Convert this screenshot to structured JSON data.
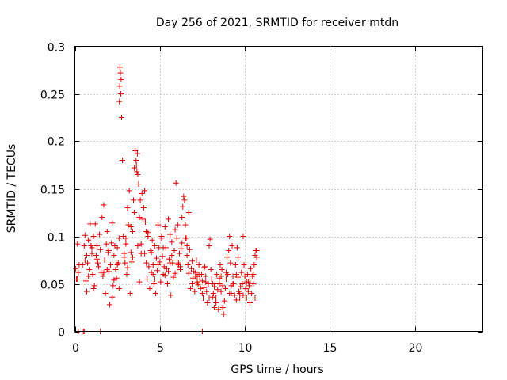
{
  "chart_data": {
    "type": "scatter",
    "title": "Day 256 of 2021, SRMTID for receiver mtdn",
    "xlabel": "GPS time / hours",
    "ylabel": "SRMTID / TECUs",
    "xlim": [
      0,
      24
    ],
    "ylim": [
      0,
      0.3
    ],
    "xticks": [
      0,
      5,
      10,
      15,
      20
    ],
    "yticks": [
      0,
      0.05,
      0.1,
      0.15,
      0.2,
      0.25,
      0.3
    ],
    "xtick_labels": [
      "0",
      "5",
      "10",
      "15",
      "20"
    ],
    "ytick_labels": [
      "0",
      "0.05",
      "0.1",
      "0.15",
      "0.2",
      "0.25",
      "0.3"
    ],
    "grid": true,
    "marker": "+",
    "color": "#e00000",
    "series": [
      {
        "name": "SRMTID",
        "x": [
          0.05,
          0.1,
          0.15,
          0.2,
          0.25,
          0.45,
          0.55,
          0.6,
          0.65,
          0.7,
          0.75,
          0.8,
          0.85,
          0.9,
          0.95,
          1.0,
          1.05,
          1.1,
          1.15,
          1.2,
          1.25,
          1.3,
          1.35,
          1.4,
          1.45,
          1.5,
          1.55,
          1.6,
          1.65,
          1.7,
          1.75,
          1.8,
          1.85,
          1.9,
          1.95,
          2.0,
          2.05,
          2.1,
          2.15,
          2.2,
          2.25,
          2.3,
          2.35,
          2.4,
          2.45,
          2.5,
          2.55,
          2.6,
          2.62,
          2.64,
          2.66,
          2.68,
          2.7,
          2.72,
          2.75,
          2.8,
          2.85,
          2.9,
          2.95,
          3.0,
          3.05,
          3.1,
          3.15,
          3.2,
          3.25,
          3.3,
          3.35,
          3.4,
          3.45,
          3.5,
          3.55,
          3.6,
          3.62,
          3.65,
          3.68,
          3.7,
          3.75,
          3.8,
          3.85,
          3.9,
          3.95,
          4.0,
          4.05,
          4.1,
          4.15,
          4.2,
          4.25,
          4.3,
          4.35,
          4.4,
          4.45,
          4.5,
          4.55,
          4.6,
          4.65,
          4.7,
          4.75,
          4.8,
          4.85,
          4.9,
          4.95,
          5.0,
          5.05,
          5.1,
          5.15,
          5.2,
          5.25,
          5.3,
          5.35,
          5.4,
          5.45,
          5.5,
          5.55,
          5.6,
          5.65,
          5.7,
          5.75,
          5.8,
          5.85,
          5.9,
          5.95,
          6.0,
          6.05,
          6.1,
          6.15,
          6.2,
          6.25,
          6.3,
          6.35,
          6.4,
          6.45,
          6.5,
          6.55,
          6.6,
          6.65,
          6.7,
          6.75,
          6.8,
          6.85,
          6.9,
          6.95,
          7.0,
          7.05,
          7.1,
          7.15,
          7.2,
          7.25,
          7.3,
          7.35,
          7.4,
          7.45,
          7.5,
          7.55,
          7.6,
          7.65,
          7.7,
          7.75,
          7.8,
          7.85,
          7.9,
          7.95,
          8.0,
          8.05,
          8.1,
          8.15,
          8.2,
          8.25,
          8.3,
          8.35,
          8.4,
          8.45,
          8.5,
          8.55,
          8.6,
          8.65,
          8.7,
          8.75,
          8.8,
          8.85,
          8.9,
          8.95,
          9.0,
          9.05,
          9.1,
          9.15,
          9.2,
          9.25,
          9.3,
          9.35,
          9.4,
          9.45,
          9.5,
          9.55,
          9.6,
          9.65,
          9.7,
          9.75,
          9.8,
          9.85,
          9.9,
          9.95,
          10.0,
          10.05,
          10.1,
          10.15,
          10.2,
          10.25,
          10.3,
          10.35,
          10.4,
          10.45,
          10.5,
          10.55,
          10.6,
          10.65,
          10.7,
          0.15,
          0.5,
          1.5,
          7.5,
          0.2,
          0.55,
          0.6,
          0.8,
          1.0,
          1.3,
          1.7,
          2.0,
          2.3,
          2.6,
          2.9,
          3.1,
          3.3,
          3.5,
          3.7,
          3.9,
          4.1,
          4.3,
          4.5,
          4.7,
          4.9,
          5.1,
          5.3,
          5.5,
          5.7,
          5.9,
          6.1,
          6.3,
          6.5,
          6.7,
          6.9,
          7.1,
          7.3,
          7.5,
          7.7,
          7.9,
          8.1,
          8.3,
          8.5,
          8.7,
          8.9,
          9.1,
          9.3,
          9.5,
          9.7,
          9.9,
          10.1,
          10.3,
          10.5,
          10.7,
          0.7,
          1.1,
          1.9,
          2.2,
          2.5,
          3.0,
          3.4,
          3.8,
          4.2,
          4.6,
          5.2,
          5.6,
          6.2,
          6.6,
          7.2,
          7.6,
          8.2,
          8.6,
          9.2,
          9.6,
          10.2,
          10.6
        ],
        "y": [
          0.066,
          0.055,
          0.092,
          0.062,
          0.07,
          0.07,
          0.09,
          0.101,
          0.053,
          0.08,
          0.072,
          0.096,
          0.065,
          0.113,
          0.09,
          0.082,
          0.06,
          0.1,
          0.048,
          0.113,
          0.08,
          0.09,
          0.072,
          0.068,
          0.102,
          0.086,
          0.062,
          0.12,
          0.058,
          0.133,
          0.075,
          0.04,
          0.092,
          0.105,
          0.083,
          0.063,
          0.028,
          0.07,
          0.093,
          0.114,
          0.048,
          0.08,
          0.09,
          0.065,
          0.056,
          0.088,
          0.072,
          0.045,
          0.242,
          0.258,
          0.278,
          0.272,
          0.25,
          0.265,
          0.225,
          0.18,
          0.1,
          0.082,
          0.072,
          0.092,
          0.06,
          0.13,
          0.112,
          0.148,
          0.04,
          0.083,
          0.073,
          0.105,
          0.138,
          0.172,
          0.19,
          0.18,
          0.175,
          0.168,
          0.187,
          0.165,
          0.155,
          0.12,
          0.138,
          0.092,
          0.145,
          0.118,
          0.13,
          0.082,
          0.115,
          0.072,
          0.055,
          0.1,
          0.068,
          0.045,
          0.085,
          0.062,
          0.096,
          0.07,
          0.05,
          0.09,
          0.04,
          0.077,
          0.064,
          0.112,
          0.088,
          0.073,
          0.052,
          0.1,
          0.079,
          0.06,
          0.068,
          0.11,
          0.088,
          0.066,
          0.05,
          0.118,
          0.076,
          0.102,
          0.038,
          0.094,
          0.072,
          0.057,
          0.085,
          0.107,
          0.156,
          0.098,
          0.112,
          0.07,
          0.082,
          0.068,
          0.087,
          0.12,
          0.131,
          0.142,
          0.138,
          0.112,
          0.098,
          0.08,
          0.07,
          0.061,
          0.086,
          0.045,
          0.066,
          0.05,
          0.056,
          0.063,
          0.042,
          0.062,
          0.075,
          0.058,
          0.049,
          0.07,
          0.055,
          0.045,
          0.06,
          0.053,
          0.035,
          0.046,
          0.068,
          0.058,
          0.042,
          0.03,
          0.05,
          0.09,
          0.097,
          0.065,
          0.055,
          0.036,
          0.04,
          0.025,
          0.05,
          0.035,
          0.06,
          0.044,
          0.023,
          0.05,
          0.07,
          0.058,
          0.065,
          0.048,
          0.018,
          0.032,
          0.045,
          0.055,
          0.078,
          0.06,
          0.085,
          0.1,
          0.072,
          0.04,
          0.09,
          0.058,
          0.05,
          0.038,
          0.07,
          0.06,
          0.088,
          0.078,
          0.042,
          0.035,
          0.047,
          0.062,
          0.05,
          0.1,
          0.07,
          0.058,
          0.045,
          0.052,
          0.06,
          0.042,
          0.048,
          0.055,
          0.066,
          0.04,
          0.058,
          0.05,
          0.07,
          0.08,
          0.085,
          0.078,
          0.055,
          0.0,
          0.0,
          0.0,
          0.0,
          0.0,
          0.075,
          0.058,
          0.088,
          0.076,
          0.062,
          0.085,
          0.054,
          0.098,
          0.078,
          0.067,
          0.11,
          0.125,
          0.09,
          0.082,
          0.148,
          0.104,
          0.083,
          0.055,
          0.07,
          0.098,
          0.059,
          0.063,
          0.08,
          0.061,
          0.072,
          0.093,
          0.098,
          0.125,
          0.074,
          0.058,
          0.06,
          0.04,
          0.052,
          0.035,
          0.05,
          0.03,
          0.056,
          0.025,
          0.062,
          0.04,
          0.05,
          0.033,
          0.04,
          0.038,
          0.035,
          0.03,
          0.06,
          0.085,
          0.042,
          0.045,
          0.065,
          0.036,
          0.07,
          0.098,
          0.078,
          0.052,
          0.105,
          0.06,
          0.088,
          0.072,
          0.065,
          0.09,
          0.052,
          0.067,
          0.047,
          0.042,
          0.048,
          0.057,
          0.052,
          0.035
        ]
      }
    ]
  }
}
